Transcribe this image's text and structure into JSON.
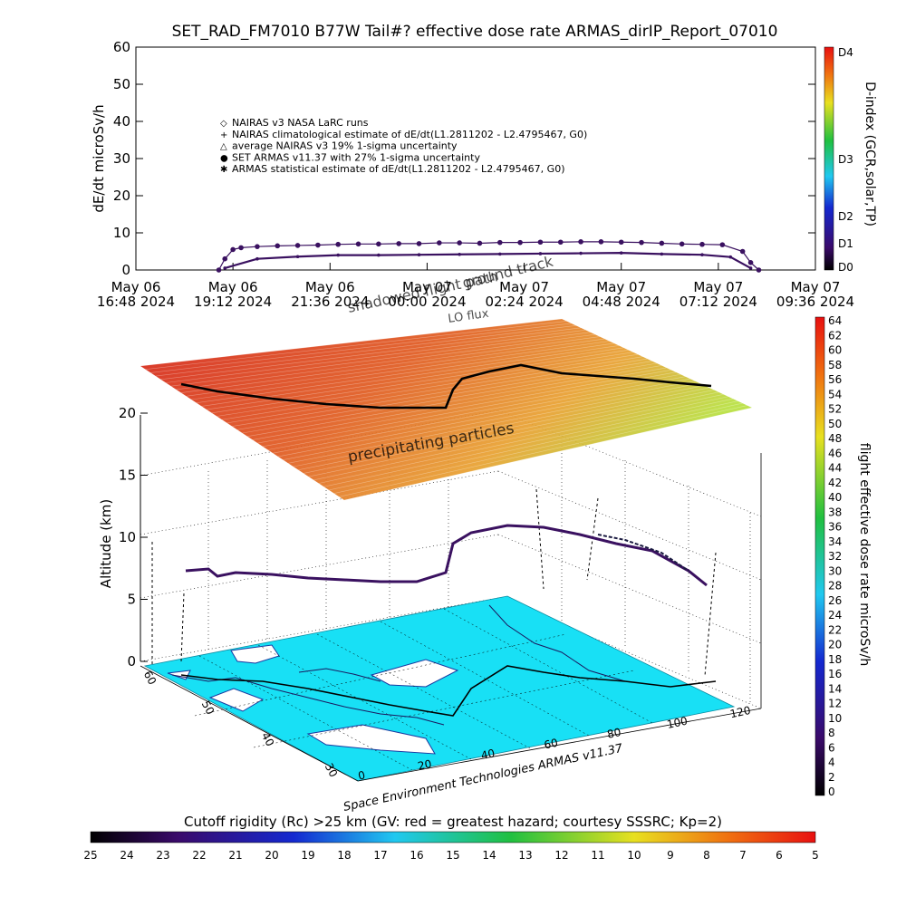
{
  "title": "SET_RAD_FM7010  B77W Tail#? effective dose rate ARMAS_dirIP_Report_07010",
  "colors": {
    "series": "#3a1160",
    "ocean": "#18e0f5",
    "land": "#ffffff"
  },
  "chart_data": [
    {
      "type": "line",
      "panel": "time-series",
      "ylabel": "dE/dt microSv/h",
      "ylim": [
        0,
        60
      ],
      "y_ticks": [
        "0",
        "10",
        "20",
        "30",
        "40",
        "50",
        "60"
      ],
      "x_ticks": [
        {
          "day": "May 06",
          "time": "16:48 2024"
        },
        {
          "day": "May 06",
          "time": "19:12 2024"
        },
        {
          "day": "May 06",
          "time": "21:36 2024"
        },
        {
          "day": "May 07",
          "time": "00:00 2024"
        },
        {
          "day": "May 07",
          "time": "02:24 2024"
        },
        {
          "day": "May 07",
          "time": "04:48 2024"
        },
        {
          "day": "May 07",
          "time": "07:12 2024"
        },
        {
          "day": "May 07",
          "time": "09:36 2024"
        }
      ],
      "legend": [
        {
          "marker": "◇",
          "label": "NAIRAS v3 NASA LaRC runs"
        },
        {
          "marker": "+",
          "label": "NAIRAS climatological estimate of dE/dt(L1.2811202 - L2.4795467, G0)"
        },
        {
          "marker": "△",
          "label": "average NAIRAS v3 19% 1-sigma uncertainty"
        },
        {
          "marker": "●",
          "label": "SET ARMAS v11.37 with 27% 1-sigma uncertainty"
        },
        {
          "marker": "✱",
          "label": "ARMAS statistical estimate of dE/dt(L1.2811202 - L2.4795467, G0)"
        }
      ],
      "series": [
        {
          "values_hours_since_first_tick": [
            2.05,
            2.2,
            2.4,
            2.6,
            3,
            3.5,
            4,
            4.5,
            5,
            5.5,
            6,
            6.5,
            7,
            7.5,
            8,
            8.5,
            9,
            9.5,
            10,
            10.5,
            11,
            11.5,
            12,
            12.5,
            13,
            13.5,
            14,
            14.5,
            15,
            15.2,
            15.4
          ],
          "y": [
            0,
            3,
            5.5,
            6,
            6.3,
            6.5,
            6.6,
            6.7,
            6.9,
            7,
            7,
            7.1,
            7.1,
            7.3,
            7.3,
            7.2,
            7.4,
            7.4,
            7.5,
            7.5,
            7.6,
            7.6,
            7.5,
            7.4,
            7.2,
            7,
            6.9,
            6.8,
            5,
            2,
            0
          ]
        },
        {
          "values_hours_since_first_tick": [
            2.2,
            3,
            4,
            5,
            6,
            7,
            8,
            9,
            10,
            11,
            12,
            13,
            14,
            14.7,
            15.2
          ],
          "y": [
            0.5,
            3,
            3.6,
            4,
            4,
            4.1,
            4.2,
            4.3,
            4.4,
            4.5,
            4.6,
            4.3,
            4.1,
            3.5,
            0.5
          ]
        }
      ],
      "right_axis": {
        "label": "D-index (GCR,solar,TP)",
        "ticks": [
          "D0",
          "D1",
          "D2",
          "D3",
          "D4"
        ]
      }
    },
    {
      "type": "scatter",
      "panel": "3d-flight",
      "zlabel": "Altitude (km)",
      "z_ticks": [
        "0",
        "5",
        "10",
        "15",
        "20"
      ],
      "lon_ticks": [
        "0",
        "20",
        "40",
        "60",
        "80",
        "100",
        "120"
      ],
      "lat_ticks": [
        "30",
        "40",
        "50",
        "60"
      ],
      "annotations": [
        "shadowed flight path",
        "ground track",
        "precipitating particles",
        "LO flux"
      ],
      "credit": "Space Environment Technologies ARMAS v11.37",
      "right_colorbar": {
        "label": "flight effective dose rate microSv/h",
        "ticks": [
          "0",
          "2",
          "4",
          "6",
          "8",
          "10",
          "12",
          "14",
          "16",
          "18",
          "20",
          "22",
          "24",
          "26",
          "28",
          "30",
          "32",
          "34",
          "36",
          "38",
          "40",
          "42",
          "44",
          "46",
          "48",
          "50",
          "52",
          "54",
          "56",
          "58",
          "60",
          "62",
          "64"
        ]
      },
      "bottom_colorbar": {
        "label": "Cutoff rigidity (Rc) >25 km (GV: red = greatest hazard; courtesy SSSRC; Kp=2)",
        "ticks": [
          "25",
          "24",
          "23",
          "22",
          "21",
          "20",
          "19",
          "18",
          "17",
          "16",
          "15",
          "14",
          "13",
          "12",
          "11",
          "10",
          "9",
          "8",
          "7",
          "6",
          "5"
        ]
      }
    }
  ]
}
